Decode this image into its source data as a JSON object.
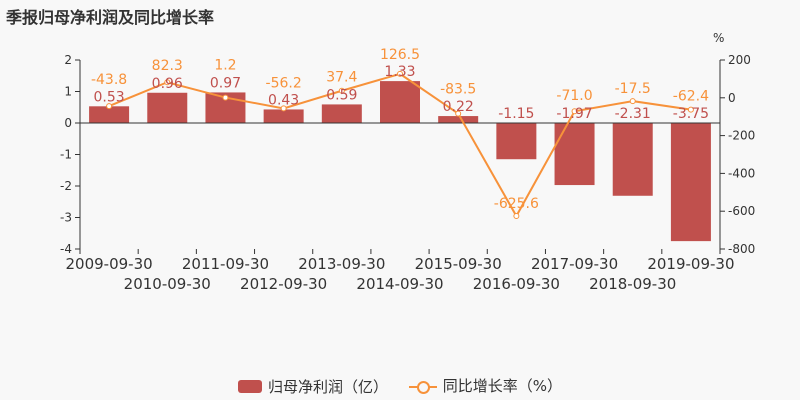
{
  "title": "季报归母净利润及同比增长率",
  "chart_data": {
    "type": "bar",
    "title": "季报归母净利润及同比增长率",
    "categories": [
      "2009-09-30",
      "2010-09-30",
      "2011-09-30",
      "2012-09-30",
      "2013-09-30",
      "2014-09-30",
      "2015-09-30",
      "2016-09-30",
      "2017-09-30",
      "2018-09-30",
      "2019-09-30"
    ],
    "series": [
      {
        "name": "归母净利润（亿）",
        "type": "bar",
        "axis": "left",
        "color": "#c0504d",
        "values": [
          0.53,
          0.96,
          0.97,
          0.43,
          0.59,
          1.33,
          0.22,
          -1.15,
          -1.97,
          -2.31,
          -3.75
        ],
        "labels": [
          "0.53",
          "0.96",
          "0.97",
          "0.43",
          "0.59",
          "1.33",
          "0.22",
          "-1.15",
          "-1.97",
          "-2.31",
          "-3.75"
        ]
      },
      {
        "name": "同比增长率（%）",
        "type": "line",
        "axis": "right",
        "color": "#f7923a",
        "values": [
          -43.8,
          82.3,
          1.2,
          -56.2,
          37.4,
          126.5,
          -83.5,
          -625.6,
          -71.0,
          -17.5,
          -62.4
        ],
        "labels": [
          "-43.8",
          "82.3",
          "1.2",
          "-56.2",
          "37.4",
          "126.5",
          "-83.5",
          "-625.6",
          "-71.0",
          "-17.5",
          "-62.4"
        ]
      }
    ],
    "left_axis": {
      "ylim": [
        -4,
        2
      ],
      "ticks": [
        "2",
        "1",
        "0",
        "-1",
        "-2",
        "-3",
        "-4"
      ]
    },
    "right_axis": {
      "ylim": [
        -800,
        200
      ],
      "ticks": [
        "200",
        "0",
        "-200",
        "-400",
        "-600",
        "-800"
      ],
      "unit": "%"
    },
    "grid": false,
    "legend": "bottom"
  }
}
